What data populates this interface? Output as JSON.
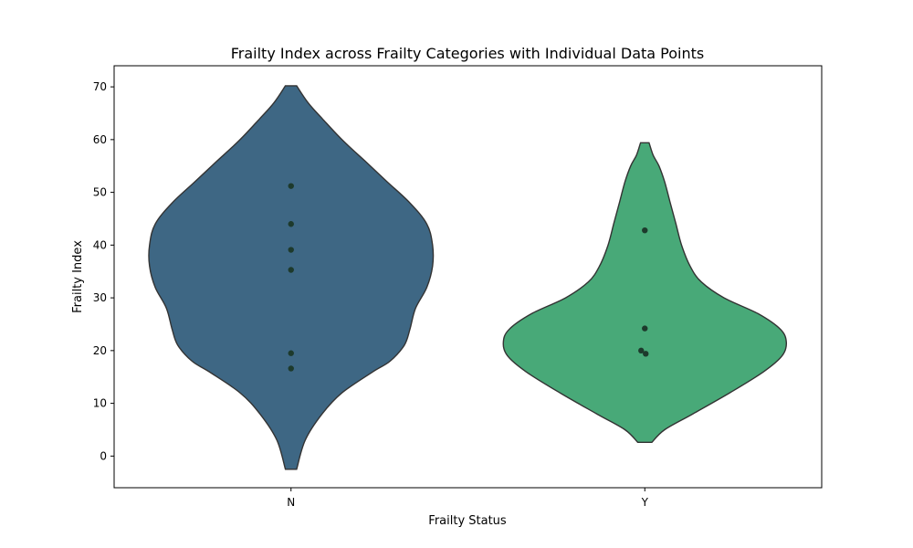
{
  "chart_data": {
    "type": "violin",
    "title": "Frailty Index across Frailty Categories with Individual Data Points",
    "xlabel": "Frailty Status",
    "ylabel": "Frailty Index",
    "ylim": [
      -6,
      74
    ],
    "yticks": [
      0,
      10,
      20,
      30,
      40,
      50,
      60,
      70
    ],
    "grid": false,
    "categories": [
      "N",
      "Y"
    ],
    "series": [
      {
        "category": "N",
        "color": "#3e6784",
        "range": [
          -2.5,
          70.2
        ],
        "density": [
          [
            -2.5,
            0.04
          ],
          [
            3,
            0.1
          ],
          [
            8,
            0.22
          ],
          [
            12,
            0.36
          ],
          [
            16,
            0.58
          ],
          [
            18,
            0.7
          ],
          [
            21,
            0.8
          ],
          [
            24,
            0.84
          ],
          [
            28,
            0.88
          ],
          [
            32,
            0.96
          ],
          [
            36,
            1.0
          ],
          [
            40,
            1.0
          ],
          [
            44,
            0.96
          ],
          [
            48,
            0.84
          ],
          [
            52,
            0.68
          ],
          [
            56,
            0.52
          ],
          [
            60,
            0.36
          ],
          [
            64,
            0.22
          ],
          [
            67,
            0.12
          ],
          [
            70.2,
            0.04
          ]
        ],
        "points": [
          51.2,
          44.0,
          39.1,
          35.3,
          19.5,
          16.6
        ]
      },
      {
        "category": "Y",
        "color": "#48a978",
        "range": [
          2.6,
          59.4
        ],
        "density": [
          [
            2.6,
            0.05
          ],
          [
            5,
            0.14
          ],
          [
            8,
            0.34
          ],
          [
            12,
            0.6
          ],
          [
            16,
            0.84
          ],
          [
            19,
            0.97
          ],
          [
            21.5,
            1.0
          ],
          [
            24,
            0.96
          ],
          [
            27,
            0.8
          ],
          [
            30,
            0.56
          ],
          [
            33,
            0.4
          ],
          [
            36,
            0.32
          ],
          [
            40,
            0.26
          ],
          [
            44,
            0.22
          ],
          [
            48,
            0.18
          ],
          [
            52,
            0.14
          ],
          [
            55,
            0.1
          ],
          [
            57,
            0.06
          ],
          [
            59.4,
            0.03
          ]
        ],
        "points": [
          42.8,
          24.2,
          20.0,
          19.4
        ]
      }
    ]
  }
}
